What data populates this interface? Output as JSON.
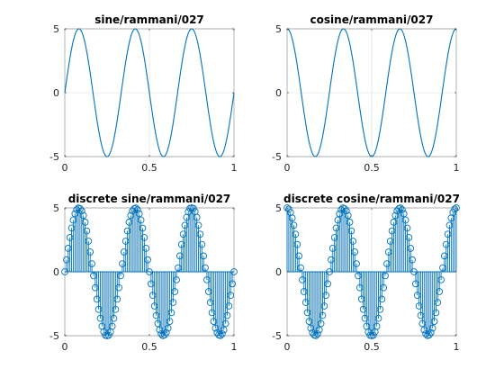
{
  "colors": {
    "series": "#0072BD",
    "axis": "#262626",
    "grid": "#dcdcdc",
    "background": "#ffffff"
  },
  "chart_data": [
    {
      "type": "line",
      "title": "sine/rammani/027",
      "function": "sine",
      "amplitude": 5,
      "frequency": 3,
      "x": [
        0,
        0.025,
        0.05,
        0.075,
        0.1,
        0.125,
        0.15,
        0.175,
        0.2,
        0.225,
        0.25,
        0.275,
        0.3,
        0.325,
        0.35,
        0.375,
        0.4,
        0.425,
        0.45,
        0.475,
        0.5,
        0.525,
        0.55,
        0.575,
        0.6,
        0.625,
        0.65,
        0.675,
        0.7,
        0.725,
        0.75,
        0.775,
        0.8,
        0.825,
        0.85,
        0.875,
        0.9,
        0.925,
        0.95,
        0.975,
        1
      ],
      "y": [
        0,
        2.27,
        4.05,
        4.94,
        4.76,
        3.54,
        1.55,
        -0.78,
        -2.94,
        -4.45,
        -5,
        -4.45,
        -2.94,
        -0.78,
        1.55,
        3.54,
        4.76,
        4.94,
        4.05,
        2.27,
        0,
        -2.27,
        -4.05,
        -4.94,
        -4.76,
        -3.54,
        -1.55,
        0.78,
        2.94,
        4.45,
        5,
        4.45,
        2.94,
        0.78,
        -1.55,
        -3.54,
        -4.76,
        -4.94,
        -4.05,
        -2.27,
        0
      ],
      "xlim": [
        0,
        1
      ],
      "ylim": [
        -5,
        5
      ],
      "xticks": [
        "0",
        "0.5",
        "1"
      ],
      "yticks": [
        "-5",
        "0",
        "5"
      ],
      "grid": true
    },
    {
      "type": "line",
      "title": "cosine/rammani/027",
      "function": "cosine",
      "amplitude": 5,
      "frequency": 3,
      "x": [
        0,
        0.025,
        0.05,
        0.075,
        0.1,
        0.125,
        0.15,
        0.175,
        0.2,
        0.225,
        0.25,
        0.275,
        0.3,
        0.325,
        0.35,
        0.375,
        0.4,
        0.425,
        0.45,
        0.475,
        0.5,
        0.525,
        0.55,
        0.575,
        0.6,
        0.625,
        0.65,
        0.675,
        0.7,
        0.725,
        0.75,
        0.775,
        0.8,
        0.825,
        0.85,
        0.875,
        0.9,
        0.925,
        0.95,
        0.975,
        1
      ],
      "y": [
        5,
        4.45,
        2.94,
        0.78,
        -1.55,
        -3.54,
        -4.76,
        -4.94,
        -4.05,
        -2.27,
        0,
        2.27,
        4.05,
        4.94,
        4.76,
        3.54,
        1.55,
        -0.78,
        -2.94,
        -4.45,
        -5,
        -4.45,
        -2.94,
        -0.78,
        1.55,
        3.54,
        4.76,
        4.94,
        4.05,
        2.27,
        0,
        -2.27,
        -4.05,
        -4.94,
        -4.76,
        -3.54,
        -1.55,
        0.78,
        2.94,
        4.45,
        5
      ],
      "xlim": [
        0,
        1
      ],
      "ylim": [
        -5,
        5
      ],
      "xticks": [
        "0",
        "0.5",
        "1"
      ],
      "yticks": [
        "-5",
        "0",
        "5"
      ],
      "grid": true
    },
    {
      "type": "stem",
      "title": "discrete sine/rammani/027",
      "function": "sine",
      "amplitude": 5,
      "frequency": 3,
      "x": [
        0,
        0.01,
        0.02,
        0.03,
        0.04,
        0.05,
        0.06,
        0.07,
        0.08,
        0.09,
        0.1,
        0.11,
        0.12,
        0.13,
        0.14,
        0.15,
        0.16,
        0.17,
        0.18,
        0.19,
        0.2,
        0.21,
        0.22,
        0.23,
        0.24,
        0.25,
        0.26,
        0.27,
        0.28,
        0.29,
        0.3,
        0.31,
        0.32,
        0.33,
        0.34,
        0.35,
        0.36,
        0.37,
        0.38,
        0.39,
        0.4,
        0.41,
        0.42,
        0.43,
        0.44,
        0.45,
        0.46,
        0.47,
        0.48,
        0.49,
        0.5,
        0.51,
        0.52,
        0.53,
        0.54,
        0.55,
        0.56,
        0.57,
        0.58,
        0.59,
        0.6,
        0.61,
        0.62,
        0.63,
        0.64,
        0.65,
        0.66,
        0.67,
        0.68,
        0.69,
        0.7,
        0.71,
        0.72,
        0.73,
        0.74,
        0.75,
        0.76,
        0.77,
        0.78,
        0.79,
        0.8,
        0.81,
        0.82,
        0.83,
        0.84,
        0.85,
        0.86,
        0.87,
        0.88,
        0.89,
        0.9,
        0.91,
        0.92,
        0.93,
        0.94,
        0.95,
        0.96,
        0.97,
        0.98,
        0.99,
        1
      ],
      "y": [
        0,
        0.94,
        1.84,
        2.68,
        3.42,
        4.05,
        4.54,
        4.86,
        4.99,
        4.94,
        4.76,
        4.41,
        3.88,
        3.2,
        2.4,
        1.55,
        0.63,
        -0.31,
        -1.24,
        -2.14,
        -2.94,
        -3.64,
        -4.26,
        -4.7,
        -4.97,
        -5,
        -4.97,
        -4.7,
        -4.26,
        -3.64,
        -2.94,
        -2.14,
        -1.24,
        -0.31,
        0.63,
        1.55,
        2.4,
        3.2,
        3.88,
        4.41,
        4.76,
        4.94,
        4.99,
        4.86,
        4.54,
        4.05,
        3.42,
        2.68,
        1.84,
        0.94,
        0,
        -0.94,
        -1.84,
        -2.68,
        -3.42,
        -4.05,
        -4.54,
        -4.86,
        -4.99,
        -4.94,
        -4.76,
        -4.41,
        -3.88,
        -3.2,
        -2.4,
        -1.55,
        -0.63,
        0.31,
        1.24,
        2.14,
        2.94,
        3.64,
        4.26,
        4.7,
        4.97,
        5,
        4.97,
        4.7,
        4.26,
        3.64,
        2.94,
        2.14,
        1.24,
        0.31,
        -0.63,
        -1.55,
        -2.4,
        -3.2,
        -3.88,
        -4.41,
        -4.76,
        -4.94,
        -4.99,
        -4.86,
        -4.54,
        -4.05,
        -3.42,
        -2.68,
        -1.84,
        -0.94,
        0
      ],
      "xlim": [
        0,
        1
      ],
      "ylim": [
        -5,
        5
      ],
      "xticks": [
        "0",
        "0.5",
        "1"
      ],
      "yticks": [
        "-5",
        "0",
        "5"
      ],
      "grid": true
    },
    {
      "type": "stem",
      "title": "discrete cosine/rammani/027",
      "function": "cosine",
      "amplitude": 5,
      "frequency": 3,
      "x": [
        0,
        0.01,
        0.02,
        0.03,
        0.04,
        0.05,
        0.06,
        0.07,
        0.08,
        0.09,
        0.1,
        0.11,
        0.12,
        0.13,
        0.14,
        0.15,
        0.16,
        0.17,
        0.18,
        0.19,
        0.2,
        0.21,
        0.22,
        0.23,
        0.24,
        0.25,
        0.26,
        0.27,
        0.28,
        0.29,
        0.3,
        0.31,
        0.32,
        0.33,
        0.34,
        0.35,
        0.36,
        0.37,
        0.38,
        0.39,
        0.4,
        0.41,
        0.42,
        0.43,
        0.44,
        0.45,
        0.46,
        0.47,
        0.48,
        0.49,
        0.5,
        0.51,
        0.52,
        0.53,
        0.54,
        0.55,
        0.56,
        0.57,
        0.58,
        0.59,
        0.6,
        0.61,
        0.62,
        0.63,
        0.64,
        0.65,
        0.66,
        0.67,
        0.68,
        0.69,
        0.7,
        0.71,
        0.72,
        0.73,
        0.74,
        0.75,
        0.76,
        0.77,
        0.78,
        0.79,
        0.8,
        0.81,
        0.82,
        0.83,
        0.84,
        0.85,
        0.86,
        0.87,
        0.88,
        0.89,
        0.9,
        0.91,
        0.92,
        0.93,
        0.94,
        0.95,
        0.96,
        0.97,
        0.98,
        0.99,
        1
      ],
      "y": [
        5,
        4.91,
        4.64,
        4.21,
        3.64,
        2.94,
        2.14,
        1.24,
        0.31,
        -0.63,
        -1.55,
        -2.4,
        -3.2,
        -3.88,
        -4.41,
        -4.76,
        -4.94,
        -4.99,
        -4.86,
        -4.54,
        -4.05,
        -3.42,
        -2.68,
        -1.84,
        -0.94,
        0,
        0.94,
        1.84,
        2.68,
        3.42,
        4.05,
        4.54,
        4.86,
        4.99,
        4.94,
        4.76,
        4.41,
        3.88,
        3.2,
        2.4,
        1.55,
        0.63,
        -0.31,
        -1.24,
        -2.14,
        -2.94,
        -3.64,
        -4.26,
        -4.7,
        -4.97,
        -5,
        -4.97,
        -4.7,
        -4.26,
        -3.64,
        -2.94,
        -2.14,
        -1.24,
        -0.31,
        0.63,
        1.55,
        2.4,
        3.2,
        3.88,
        4.41,
        4.76,
        4.94,
        4.99,
        4.86,
        4.54,
        4.05,
        3.42,
        2.68,
        1.84,
        0.94,
        0,
        -0.94,
        -1.84,
        -2.68,
        -3.42,
        -4.05,
        -4.54,
        -4.86,
        -4.99,
        -4.94,
        -4.76,
        -4.41,
        -3.88,
        -3.2,
        -2.4,
        -1.55,
        -0.63,
        0.31,
        1.24,
        2.14,
        2.94,
        3.64,
        4.21,
        4.64,
        4.91,
        5
      ],
      "xlim": [
        0,
        1
      ],
      "ylim": [
        -5,
        5
      ],
      "xticks": [
        "0",
        "0.5",
        "1"
      ],
      "yticks": [
        "-5",
        "0",
        "5"
      ],
      "grid": true
    }
  ]
}
